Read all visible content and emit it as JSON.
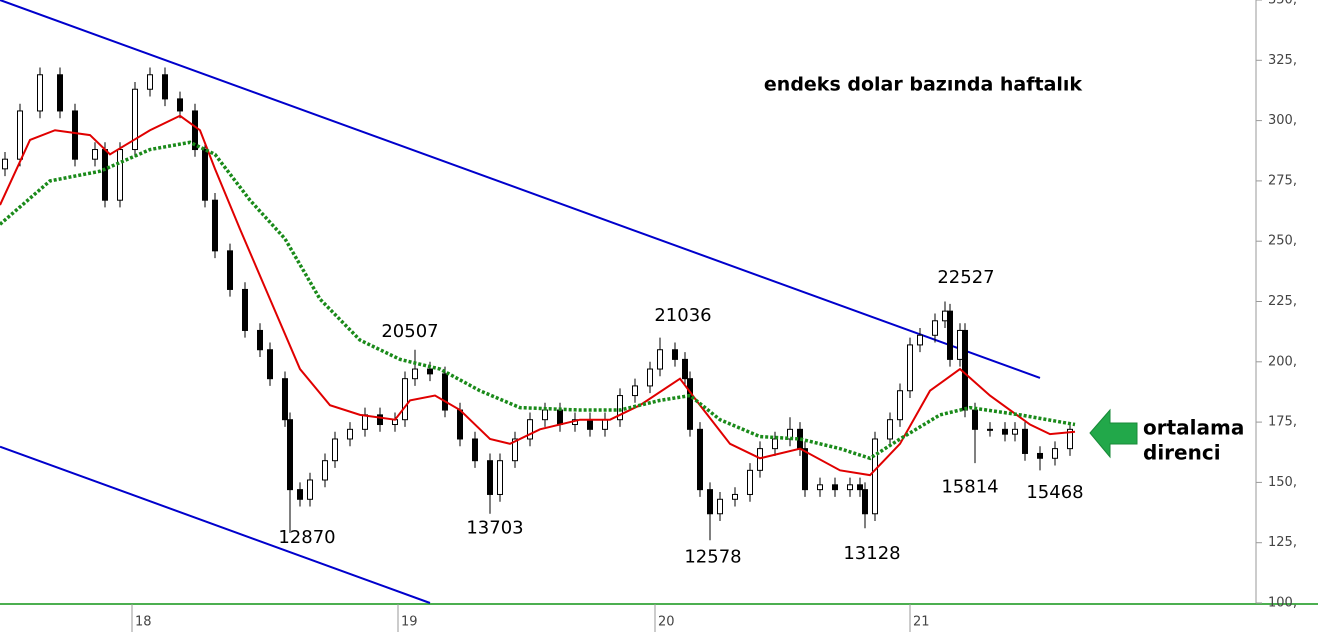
{
  "chart_data": {
    "type": "candlestick",
    "title": "endeks dolar bazında haftalık",
    "note_lines": [
      "ortalama",
      "direnci"
    ],
    "xlim": [
      0,
      251
    ],
    "xticks": [
      {
        "value": 26.4,
        "label": "18"
      },
      {
        "value": 79.6,
        "label": "19"
      },
      {
        "value": 131,
        "label": "20"
      },
      {
        "value": 182,
        "label": "21"
      }
    ],
    "ylim": [
      100,
      350
    ],
    "yticks": [
      {
        "value": 100,
        "label": "100,"
      },
      {
        "value": 125,
        "label": "125,"
      },
      {
        "value": 150,
        "label": "150,"
      },
      {
        "value": 175,
        "label": "175,"
      },
      {
        "value": 200,
        "label": "200,"
      },
      {
        "value": 225,
        "label": "225,"
      },
      {
        "value": 250,
        "label": "250,"
      },
      {
        "value": 275,
        "label": "275,"
      },
      {
        "value": 300,
        "label": "300,"
      },
      {
        "value": 325,
        "label": "325,"
      },
      {
        "value": 350,
        "label": "350,"
      }
    ],
    "candles": {
      "x": [
        1,
        4,
        8,
        12,
        15,
        19,
        21,
        24,
        27,
        30,
        33,
        36,
        39,
        41,
        43,
        46,
        49,
        52,
        54,
        57,
        58,
        60,
        62,
        65,
        67,
        70,
        73,
        76,
        79,
        81,
        83,
        86,
        89,
        92,
        95,
        98,
        100,
        103,
        106,
        109,
        112,
        115,
        118,
        121,
        124,
        127,
        130,
        132,
        135,
        137,
        138,
        140,
        142,
        144,
        147,
        150,
        152,
        155,
        158,
        160,
        161,
        164,
        167,
        170,
        172,
        173,
        175,
        178,
        180,
        182,
        184,
        187,
        189,
        190,
        192,
        193,
        195,
        198,
        201,
        203,
        205,
        208,
        211,
        214
      ],
      "open": [
        280,
        284,
        304,
        319,
        304,
        284,
        288,
        267,
        288,
        313,
        319,
        309,
        304,
        288,
        267,
        246,
        230,
        213,
        205,
        193,
        176,
        147,
        143,
        151,
        159,
        168,
        172,
        178,
        174,
        176,
        193,
        197,
        195,
        180,
        168,
        159,
        145,
        159,
        168,
        176,
        180,
        174,
        176,
        172,
        176,
        186,
        190,
        197,
        205,
        201,
        193,
        172,
        147,
        137,
        143,
        145,
        155,
        164,
        168,
        172,
        164,
        147,
        149,
        147,
        149,
        147,
        137,
        168,
        176,
        188,
        207,
        211,
        217,
        221,
        201,
        213,
        180,
        172,
        172,
        170,
        172,
        162,
        160,
        164
      ],
      "high": [
        287,
        307,
        322,
        322,
        307,
        291,
        291,
        291,
        316,
        322,
        322,
        312,
        307,
        291,
        270,
        249,
        233,
        216,
        208,
        196,
        179,
        150,
        154,
        162,
        171,
        175,
        181,
        181,
        179,
        196,
        205,
        200,
        198,
        183,
        171,
        162,
        162,
        171,
        179,
        183,
        183,
        179,
        179,
        179,
        189,
        193,
        200,
        210,
        208,
        204,
        196,
        175,
        150,
        146,
        148,
        158,
        167,
        171,
        177,
        175,
        167,
        152,
        152,
        152,
        152,
        150,
        171,
        179,
        191,
        210,
        214,
        220,
        225,
        224,
        216,
        216,
        183,
        175,
        175,
        175,
        175,
        165,
        167,
        175
      ],
      "low": [
        277,
        281,
        301,
        301,
        281,
        281,
        264,
        264,
        285,
        310,
        306,
        301,
        285,
        264,
        243,
        227,
        210,
        202,
        190,
        173,
        129,
        140,
        140,
        148,
        156,
        165,
        169,
        171,
        171,
        173,
        190,
        192,
        177,
        165,
        156,
        137,
        142,
        156,
        165,
        173,
        171,
        171,
        169,
        169,
        173,
        183,
        187,
        194,
        198,
        190,
        169,
        144,
        126,
        134,
        140,
        142,
        152,
        161,
        165,
        161,
        144,
        144,
        144,
        144,
        144,
        131,
        134,
        165,
        173,
        185,
        204,
        208,
        214,
        198,
        198,
        177,
        158,
        169,
        167,
        167,
        159,
        155,
        157,
        161
      ],
      "close": [
        284,
        304,
        319,
        304,
        284,
        288,
        267,
        288,
        313,
        319,
        309,
        304,
        288,
        267,
        246,
        230,
        213,
        205,
        193,
        176,
        147,
        143,
        151,
        159,
        168,
        172,
        178,
        174,
        176,
        193,
        197,
        195,
        180,
        168,
        159,
        145,
        159,
        168,
        176,
        180,
        174,
        176,
        172,
        176,
        186,
        190,
        197,
        205,
        201,
        193,
        172,
        147,
        137,
        143,
        145,
        155,
        164,
        168,
        172,
        164,
        147,
        149,
        147,
        149,
        147,
        137,
        168,
        176,
        188,
        207,
        211,
        217,
        221,
        201,
        213,
        180,
        172,
        172,
        170,
        172,
        162,
        160,
        164,
        172
      ]
    },
    "lines": [
      {
        "color": "#e00000",
        "x": [
          0,
          6,
          11,
          18,
          22,
          30,
          36,
          40,
          43,
          48,
          54,
          60,
          66,
          72,
          79,
          82,
          87,
          92,
          98,
          102,
          108,
          116,
          122,
          128,
          136,
          140,
          146,
          152,
          160,
          168,
          174,
          180,
          186,
          192,
          198,
          206,
          210,
          215
        ],
        "values": [
          265,
          292,
          296,
          294,
          286,
          296,
          302,
          296,
          280,
          255,
          226,
          197,
          182,
          178,
          176,
          184,
          186,
          180,
          168,
          166,
          172,
          176,
          176,
          182,
          193,
          182,
          166,
          160,
          164,
          155,
          153,
          166,
          188,
          197,
          186,
          174,
          170,
          171
        ]
      },
      {
        "color": "#1a8a1a",
        "dotted": true,
        "x": [
          0,
          10,
          20,
          30,
          38,
          43,
          50,
          57,
          64,
          72,
          80,
          88,
          96,
          104,
          116,
          124,
          132,
          138,
          144,
          152,
          160,
          168,
          174,
          180,
          188,
          194,
          204,
          215
        ],
        "values": [
          257,
          275,
          279,
          288,
          291,
          286,
          267,
          251,
          226,
          209,
          201,
          197,
          188,
          181,
          180,
          180,
          184,
          186,
          176,
          169,
          168,
          164,
          160,
          168,
          178,
          181,
          178,
          174
        ]
      }
    ],
    "trendlines": [
      {
        "color": "#0000cc",
        "x": [
          0,
          208
        ],
        "y": [
          350,
          193.3
        ]
      },
      {
        "color": "#0000cc",
        "x": [
          0,
          86
        ],
        "y": [
          164.8,
          100
        ]
      }
    ],
    "annotations": [
      {
        "text": "20507",
        "x": 82,
        "y": 212.4
      },
      {
        "text": "21036",
        "x": 136.6,
        "y": 219
      },
      {
        "text": "22527",
        "x": 193.2,
        "y": 234.8
      },
      {
        "text": "12870",
        "x": 61.4,
        "y": 127
      },
      {
        "text": "13703",
        "x": 99,
        "y": 130.8
      },
      {
        "text": "12578",
        "x": 142.6,
        "y": 118.8
      },
      {
        "text": "13128",
        "x": 174.4,
        "y": 120.4
      },
      {
        "text": "15814",
        "x": 194,
        "y": 147.8
      },
      {
        "text": "15468",
        "x": 211,
        "y": 145.7
      }
    ],
    "up_color": "#ffffff",
    "down_color": "#000000"
  }
}
